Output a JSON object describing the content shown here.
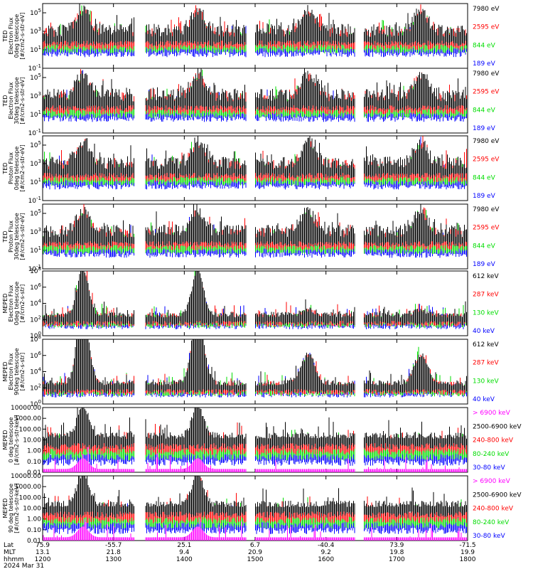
{
  "chart_data": [
    {
      "type": "line",
      "ylabel": [
        "TED",
        "Electron Flux",
        "0deg telescope",
        "[#/cm2-s-str-eV]"
      ],
      "yticks": [
        {
          "e": -1,
          "l": "10-1"
        },
        {
          "e": 1,
          "l": "101"
        },
        {
          "e": 3,
          "l": "103"
        },
        {
          "e": 5,
          "l": "105"
        }
      ],
      "ylim": [
        -1,
        6
      ],
      "scale": "log",
      "series": [
        {
          "name": "7980 eV",
          "color": "#000000"
        },
        {
          "name": "2595 eV",
          "color": "#ff0000"
        },
        {
          "name": "844 eV",
          "color": "#00dd00"
        },
        {
          "name": "189 eV",
          "color": "#0000ff"
        }
      ]
    },
    {
      "type": "line",
      "ylabel": [
        "TED",
        "Electron Flux",
        "30deg telescope",
        "[#/cm2-s-str-eV]"
      ],
      "yticks": [
        {
          "e": -1,
          "l": "10-1"
        },
        {
          "e": 1,
          "l": "101"
        },
        {
          "e": 3,
          "l": "103"
        },
        {
          "e": 5,
          "l": "105"
        }
      ],
      "ylim": [
        -1,
        6
      ],
      "scale": "log",
      "series": [
        {
          "name": "7980 eV",
          "color": "#000000"
        },
        {
          "name": "2595 eV",
          "color": "#ff0000"
        },
        {
          "name": "844 eV",
          "color": "#00dd00"
        },
        {
          "name": "189 eV",
          "color": "#0000ff"
        }
      ]
    },
    {
      "type": "line",
      "ylabel": [
        "TED",
        "Proton Flux",
        "0deg telescope",
        "[#/cm2-s-str-eV]"
      ],
      "yticks": [
        {
          "e": -1,
          "l": "10-1"
        },
        {
          "e": 1,
          "l": "101"
        },
        {
          "e": 3,
          "l": "103"
        },
        {
          "e": 5,
          "l": "105"
        }
      ],
      "ylim": [
        -1,
        6
      ],
      "scale": "log",
      "series": [
        {
          "name": "7980 eV",
          "color": "#000000"
        },
        {
          "name": "2595 eV",
          "color": "#ff0000"
        },
        {
          "name": "844 eV",
          "color": "#00dd00"
        },
        {
          "name": "189 eV",
          "color": "#0000ff"
        }
      ]
    },
    {
      "type": "line",
      "ylabel": [
        "TED",
        "Proton Flux",
        "30deg telescope",
        "[#/cm2-s-str-eV]"
      ],
      "yticks": [
        {
          "e": -1,
          "l": "10-1"
        },
        {
          "e": 1,
          "l": "101"
        },
        {
          "e": 3,
          "l": "103"
        },
        {
          "e": 5,
          "l": "105"
        }
      ],
      "ylim": [
        -1,
        6
      ],
      "scale": "log",
      "series": [
        {
          "name": "7980 eV",
          "color": "#000000"
        },
        {
          "name": "2595 eV",
          "color": "#ff0000"
        },
        {
          "name": "844 eV",
          "color": "#00dd00"
        },
        {
          "name": "189 eV",
          "color": "#0000ff"
        }
      ]
    },
    {
      "type": "line",
      "ylabel": [
        "MEPED",
        "Electron Flux",
        "0deg telescope",
        "[#/cm2-s-str]"
      ],
      "yticks": [
        {
          "e": 0,
          "l": "100"
        },
        {
          "e": 2,
          "l": "102"
        },
        {
          "e": 4,
          "l": "104"
        },
        {
          "e": 6,
          "l": "106"
        },
        {
          "e": 8,
          "l": "108"
        }
      ],
      "ylim": [
        0,
        8
      ],
      "scale": "log",
      "series": [
        {
          "name": "612 keV",
          "color": "#000000"
        },
        {
          "name": "287 keV",
          "color": "#ff0000"
        },
        {
          "name": "130 keV",
          "color": "#00dd00"
        },
        {
          "name": "40 keV",
          "color": "#0000ff"
        }
      ]
    },
    {
      "type": "line",
      "ylabel": [
        "MEPED",
        "Electron Flux",
        "90deg telescope",
        "[#/cm2-s-str]"
      ],
      "yticks": [
        {
          "e": 0,
          "l": "100"
        },
        {
          "e": 2,
          "l": "102"
        },
        {
          "e": 4,
          "l": "104"
        },
        {
          "e": 6,
          "l": "106"
        },
        {
          "e": 8,
          "l": "108"
        }
      ],
      "ylim": [
        0,
        8
      ],
      "scale": "log",
      "series": [
        {
          "name": "612 keV",
          "color": "#000000"
        },
        {
          "name": "287 keV",
          "color": "#ff0000"
        },
        {
          "name": "130 keV",
          "color": "#00dd00"
        },
        {
          "name": "40 keV",
          "color": "#0000ff"
        }
      ]
    },
    {
      "type": "line",
      "ylabel": [
        "MEPED",
        "0 deg telescope",
        "[#/cm2-s-str-keV]"
      ],
      "yticks": [
        {
          "e": -2,
          "l": "0.01"
        },
        {
          "e": -1,
          "l": "0.10"
        },
        {
          "e": 0,
          "l": "1.00"
        },
        {
          "e": 1,
          "l": "10.00"
        },
        {
          "e": 2,
          "l": "100.00"
        },
        {
          "e": 3,
          "l": "1000.00"
        },
        {
          "e": 4,
          "l": "10000.00"
        }
      ],
      "ylim": [
        -2,
        4
      ],
      "scale": "log",
      "series": [
        {
          "name": "> 6900 keV",
          "color": "#ff00ff"
        },
        {
          "name": "2500-6900 keV",
          "color": "#000000"
        },
        {
          "name": "240-800 keV",
          "color": "#ff0000"
        },
        {
          "name": "80-240 keV",
          "color": "#00dd00"
        },
        {
          "name": "30-80 keV",
          "color": "#0000ff"
        }
      ]
    },
    {
      "type": "line",
      "ylabel": [
        "MEPED",
        "90 deg telescope",
        "[#/cm2-s-str-keV]"
      ],
      "yticks": [
        {
          "e": -2,
          "l": "0.01"
        },
        {
          "e": -1,
          "l": "0.10"
        },
        {
          "e": 0,
          "l": "1.00"
        },
        {
          "e": 1,
          "l": "10.00"
        },
        {
          "e": 2,
          "l": "100.00"
        },
        {
          "e": 3,
          "l": "1000.00"
        },
        {
          "e": 4,
          "l": "10000.00"
        }
      ],
      "ylim": [
        -2,
        4
      ],
      "scale": "log",
      "series": [
        {
          "name": "> 6900 keV",
          "color": "#ff00ff"
        },
        {
          "name": "2500-6900 keV",
          "color": "#000000"
        },
        {
          "name": "240-800 keV",
          "color": "#ff0000"
        },
        {
          "name": "80-240 keV",
          "color": "#00dd00"
        },
        {
          "name": "30-80 keV",
          "color": "#0000ff"
        }
      ]
    }
  ],
  "xaxis": {
    "row_labels": [
      "Lat",
      "MLT",
      "hhmm",
      "2024 Mar 31"
    ],
    "ticks": [
      {
        "t": 1200,
        "lat": "75.9",
        "mlt": "13.1",
        "hhmm": "1200"
      },
      {
        "t": 1300,
        "lat": "-55.7",
        "mlt": "21.8",
        "hhmm": "1300"
      },
      {
        "t": 1400,
        "lat": "25.1",
        "mlt": "9.4",
        "hhmm": "1400"
      },
      {
        "t": 1500,
        "lat": "6.7",
        "mlt": "20.9",
        "hhmm": "1500"
      },
      {
        "t": 1600,
        "lat": "-40.4",
        "mlt": "9.2",
        "hhmm": "1600"
      },
      {
        "t": 1700,
        "lat": "73.9",
        "mlt": "19.8",
        "hhmm": "1700"
      },
      {
        "t": 1800,
        "lat": "-71.5",
        "mlt": "19.9",
        "hhmm": "1800"
      }
    ]
  }
}
